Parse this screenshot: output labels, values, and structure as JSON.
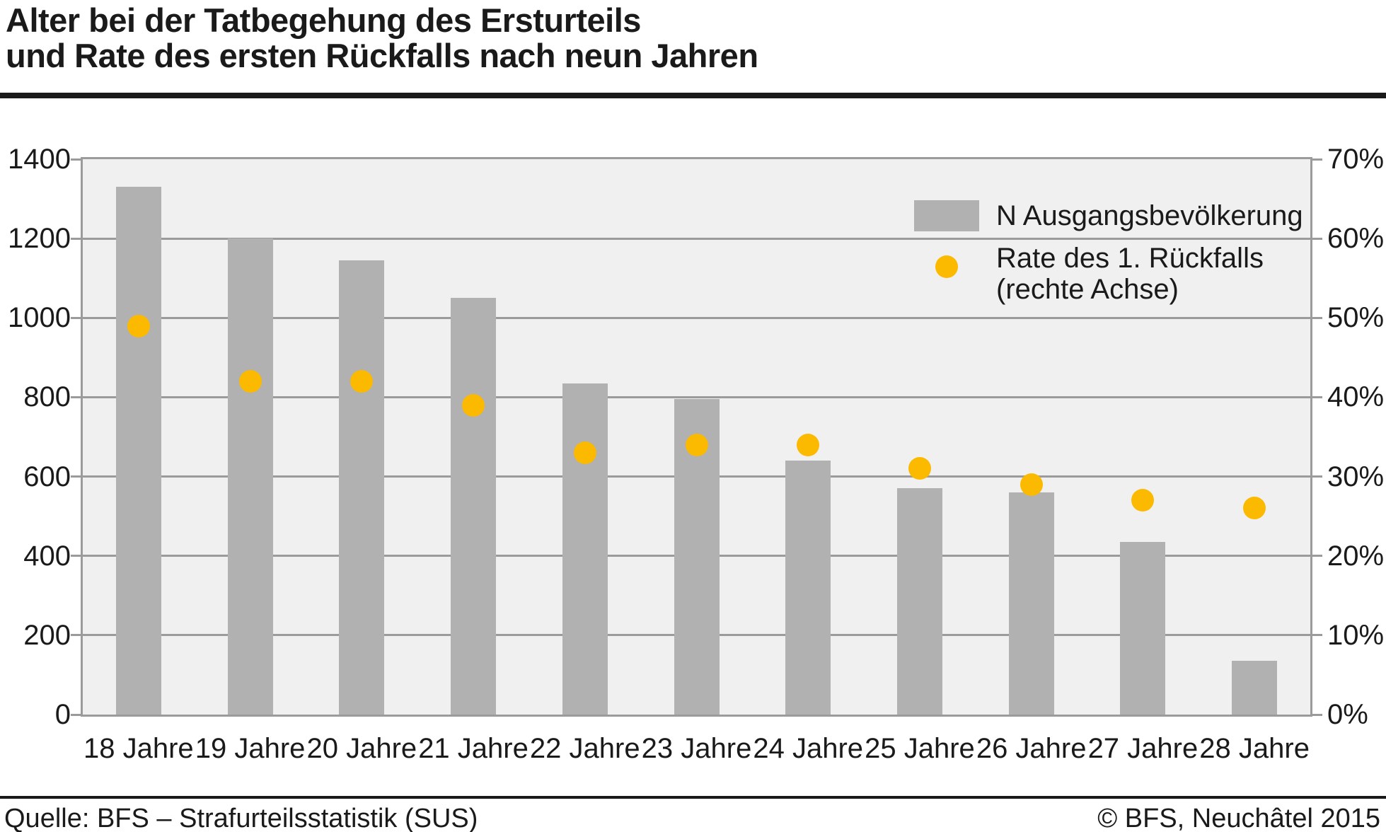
{
  "title": {
    "line1": "Alter bei der Tatbegehung des Ersturteils",
    "line2": "und Rate des ersten Rückfalls nach neun Jahren"
  },
  "footer": {
    "source": "Quelle: BFS – Strafurteilsstatistik (SUS)",
    "copyright": "© BFS, Neuchâtel 2015"
  },
  "legend": {
    "items": [
      {
        "swatch": "gray-bar-swatch",
        "label": "N Ausgangsbevölkerung"
      },
      {
        "swatch": "yellow-dot-swatch",
        "label": "Rate des 1. Rückfalls",
        "label2": "(rechte Achse)"
      }
    ]
  },
  "colors": {
    "bar": "#b1b1b1",
    "dot": "#fbb900",
    "plot_background": "#f0f0f0",
    "gridline": "#9b9b9b",
    "text": "#1a1a1a"
  },
  "chart_data": {
    "type": "bar",
    "subtype": "combo-bar-scatter",
    "title": "Alter bei der Tatbegehung des Ersturteils und Rate des ersten Rückfalls nach neun Jahren",
    "categories": [
      "18 Jahre",
      "19 Jahre",
      "20 Jahre",
      "21 Jahre",
      "22 Jahre",
      "23 Jahre",
      "24 Jahre",
      "25 Jahre",
      "26 Jahre",
      "27 Jahre",
      "28 Jahre"
    ],
    "series": [
      {
        "name": "N Ausgangsbevölkerung",
        "type": "bar",
        "axis": "left",
        "values": [
          1330,
          1200,
          1145,
          1050,
          835,
          795,
          640,
          570,
          560,
          435,
          135
        ]
      },
      {
        "name": "Rate des 1. Rückfalls (rechte Achse)",
        "type": "scatter",
        "axis": "right",
        "values": [
          49,
          42,
          42,
          39,
          33,
          34,
          34,
          31,
          29,
          27,
          26
        ],
        "unit": "%"
      }
    ],
    "left_axis": {
      "min": 0,
      "max": 1400,
      "step": 200,
      "tick_labels": [
        "0",
        "200",
        "400",
        "600",
        "800",
        "1000",
        "1200",
        "1400"
      ]
    },
    "right_axis": {
      "min": 0,
      "max": 70,
      "step": 10,
      "tick_labels": [
        "0%",
        "10%",
        "20%",
        "30%",
        "40%",
        "50%",
        "60%",
        "70%"
      ]
    },
    "grid": true,
    "legend_position": "top-right-inside"
  }
}
